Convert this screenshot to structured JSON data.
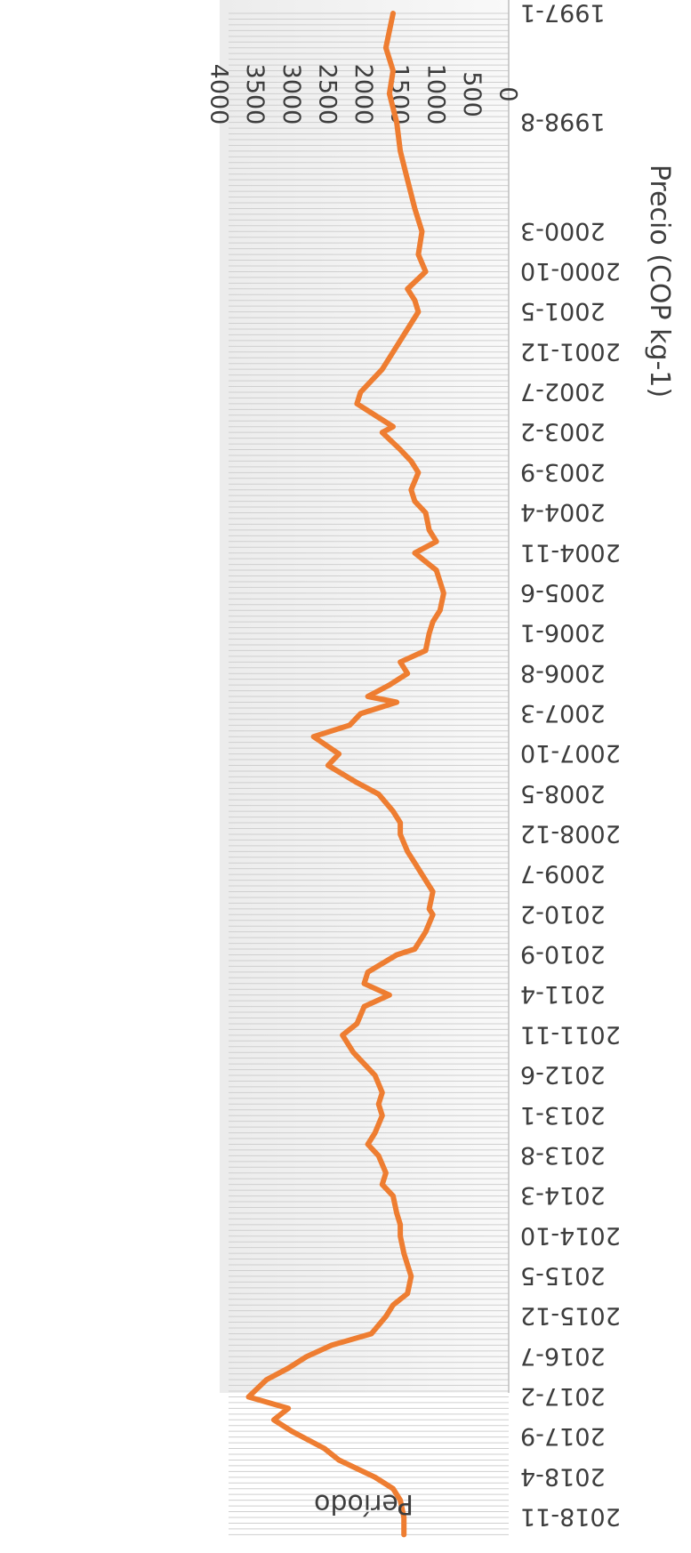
{
  "chart_data": {
    "type": "line",
    "orientation": "rotated-180",
    "title": "",
    "xlabel": "Período",
    "ylabel": "Precio (COP kg-1)",
    "ylim": [
      0,
      4000
    ],
    "yticks": [
      0,
      500,
      1000,
      1500,
      2000,
      2500,
      3000,
      3500,
      4000
    ],
    "xtick_labels": [
      "1997-1",
      "1998-8",
      "2000-3",
      "2000-10",
      "2001-5",
      "2001-12",
      "2002-7",
      "2003-2",
      "2003-9",
      "2004-4",
      "2004-11",
      "2005-6",
      "2006-1",
      "2006-8",
      "2007-3",
      "2007-10",
      "2008-5",
      "2008-12",
      "2009-7",
      "2010-2",
      "2010-9",
      "2011-4",
      "2011-11",
      "2012-6",
      "2013-1",
      "2013-8",
      "2014-3",
      "2014-10",
      "2015-5",
      "2015-12",
      "2016-7",
      "2017-2",
      "2017-9",
      "2018-4",
      "2018-11"
    ],
    "grid": "vertical stripes per period",
    "series": [
      {
        "color": "#ee7d31",
        "points": [
          [
            "1997-1",
            1600
          ],
          [
            "1997-7",
            1700
          ],
          [
            "1997-11",
            1600
          ],
          [
            "1998-3",
            1650
          ],
          [
            "1998-8",
            1550
          ],
          [
            "1999-1",
            1500
          ],
          [
            "1999-6",
            1400
          ],
          [
            "1999-11",
            1300
          ],
          [
            "2000-3",
            1200
          ],
          [
            "2000-7",
            1250
          ],
          [
            "2000-10",
            1150
          ],
          [
            "2001-1",
            1400
          ],
          [
            "2001-3",
            1300
          ],
          [
            "2001-5",
            1250
          ],
          [
            "2001-9",
            1450
          ],
          [
            "2001-12",
            1600
          ],
          [
            "2002-3",
            1750
          ],
          [
            "2002-7",
            2050
          ],
          [
            "2002-9",
            2100
          ],
          [
            "2002-11",
            1850
          ],
          [
            "2003-1",
            1600
          ],
          [
            "2003-2",
            1750
          ],
          [
            "2003-5",
            1500
          ],
          [
            "2003-7",
            1350
          ],
          [
            "2003-9",
            1250
          ],
          [
            "2003-12",
            1350
          ],
          [
            "2004-2",
            1300
          ],
          [
            "2004-4",
            1150
          ],
          [
            "2004-7",
            1100
          ],
          [
            "2004-9",
            1000
          ],
          [
            "2004-11",
            1300
          ],
          [
            "2005-2",
            1000
          ],
          [
            "2005-4",
            950
          ],
          [
            "2005-6",
            900
          ],
          [
            "2005-9",
            950
          ],
          [
            "2005-11",
            1050
          ],
          [
            "2006-1",
            1100
          ],
          [
            "2006-4",
            1150
          ],
          [
            "2006-6",
            1500
          ],
          [
            "2006-8",
            1400
          ],
          [
            "2006-10",
            1650
          ],
          [
            "2006-12",
            1950
          ],
          [
            "2007-1",
            1550
          ],
          [
            "2007-3",
            2050
          ],
          [
            "2007-5",
            2200
          ],
          [
            "2007-7",
            2700
          ],
          [
            "2007-10",
            2350
          ],
          [
            "2007-12",
            2500
          ],
          [
            "2008-3",
            2100
          ],
          [
            "2008-5",
            1800
          ],
          [
            "2008-8",
            1600
          ],
          [
            "2008-10",
            1500
          ],
          [
            "2008-12",
            1500
          ],
          [
            "2009-3",
            1400
          ],
          [
            "2009-5",
            1300
          ],
          [
            "2009-7",
            1200
          ],
          [
            "2009-10",
            1050
          ],
          [
            "2010-1",
            1100
          ],
          [
            "2010-2",
            1050
          ],
          [
            "2010-5",
            1150
          ],
          [
            "2010-8",
            1300
          ],
          [
            "2010-9",
            1550
          ],
          [
            "2010-12",
            1950
          ],
          [
            "2011-2",
            2000
          ],
          [
            "2011-4",
            1650
          ],
          [
            "2011-6",
            2000
          ],
          [
            "2011-9",
            2100
          ],
          [
            "2011-11",
            2300
          ],
          [
            "2012-2",
            2150
          ],
          [
            "2012-4",
            2000
          ],
          [
            "2012-6",
            1850
          ],
          [
            "2012-9",
            1750
          ],
          [
            "2012-11",
            1800
          ],
          [
            "2013-1",
            1750
          ],
          [
            "2013-4",
            1850
          ],
          [
            "2013-6",
            1950
          ],
          [
            "2013-8",
            1800
          ],
          [
            "2013-11",
            1700
          ],
          [
            "2014-1",
            1750
          ],
          [
            "2014-3",
            1600
          ],
          [
            "2014-6",
            1550
          ],
          [
            "2014-8",
            1500
          ],
          [
            "2014-10",
            1500
          ],
          [
            "2015-1",
            1450
          ],
          [
            "2015-3",
            1400
          ],
          [
            "2015-5",
            1350
          ],
          [
            "2015-8",
            1400
          ],
          [
            "2015-10",
            1600
          ],
          [
            "2015-12",
            1700
          ],
          [
            "2016-3",
            1900
          ],
          [
            "2016-5",
            2450
          ],
          [
            "2016-7",
            2800
          ],
          [
            "2016-9",
            3050
          ],
          [
            "2016-11",
            3350
          ],
          [
            "2017-2",
            3600
          ],
          [
            "2017-4",
            3050
          ],
          [
            "2017-6",
            3250
          ],
          [
            "2017-8",
            3000
          ],
          [
            "2017-9",
            2850
          ],
          [
            "2017-11",
            2550
          ],
          [
            "2018-1",
            2350
          ],
          [
            "2018-4",
            1850
          ],
          [
            "2018-6",
            1600
          ],
          [
            "2018-8",
            1500
          ],
          [
            "2018-11",
            1450
          ],
          [
            "2019-2",
            1450
          ]
        ]
      }
    ]
  }
}
